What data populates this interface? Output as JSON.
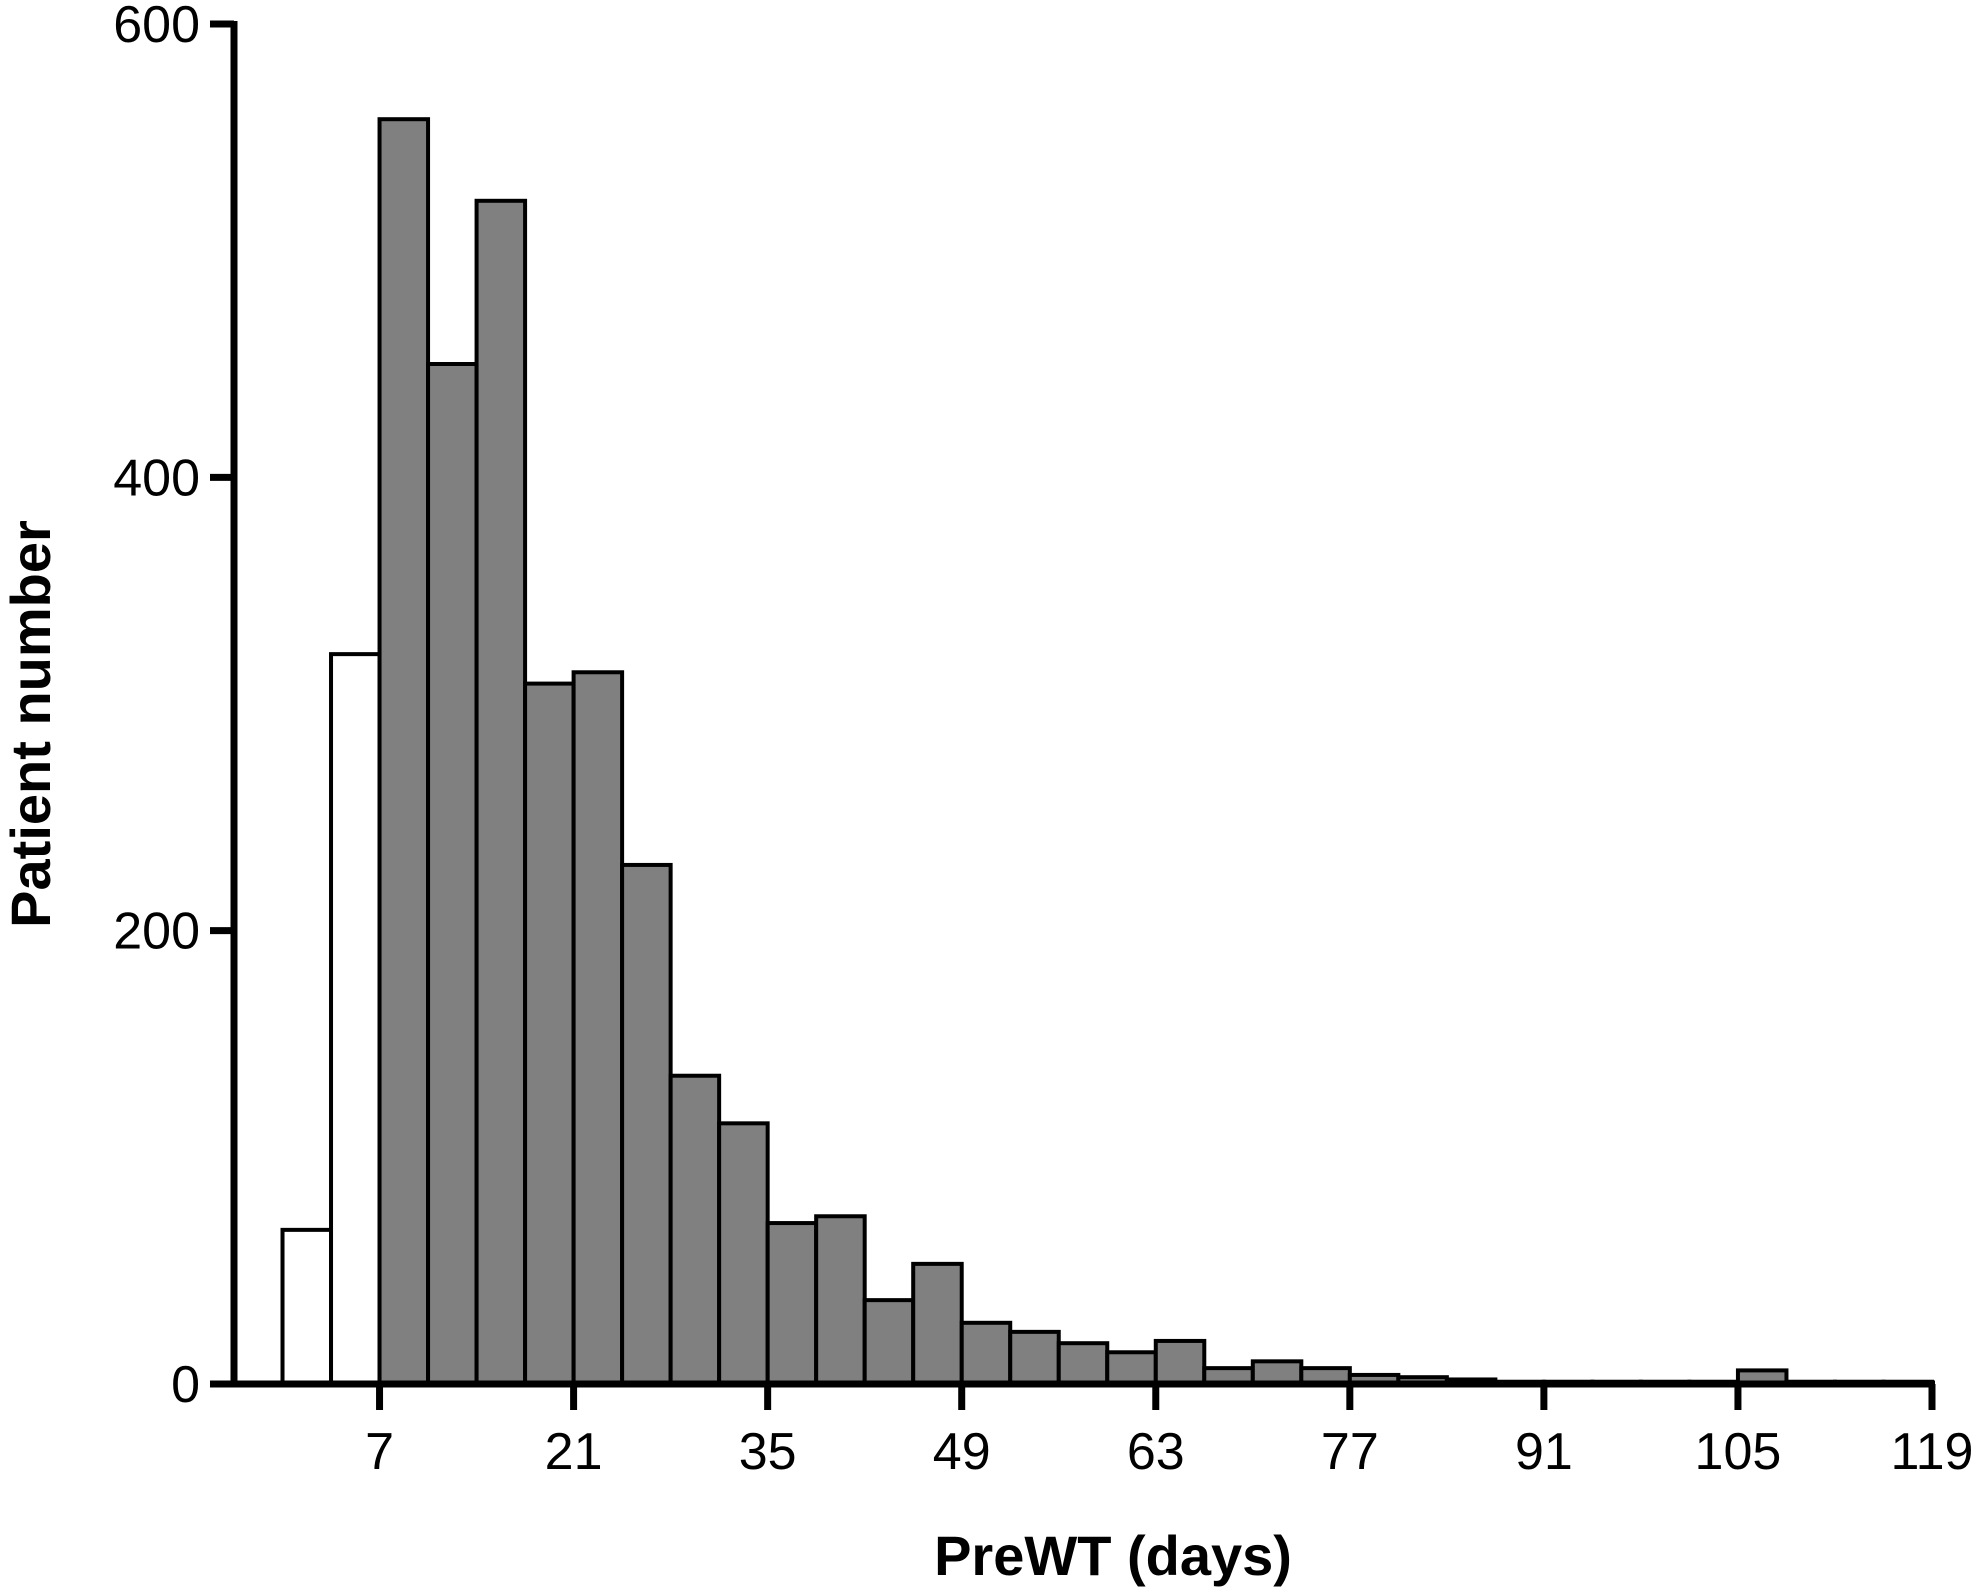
{
  "chart_data": {
    "type": "bar",
    "title": "",
    "xlabel": "PreWT (days)",
    "ylabel": "Patient number",
    "xlim": [
      -3.5,
      119
    ],
    "ylim": [
      0,
      600
    ],
    "x_ticks": [
      7,
      21,
      35,
      49,
      63,
      77,
      91,
      105,
      119
    ],
    "y_ticks": [
      0,
      200,
      400,
      600
    ],
    "bin_width": 3.5,
    "colors": {
      "highlight": "#ffffff",
      "main": "#808080"
    },
    "series": [
      {
        "values": [
          {
            "x": 0.0,
            "y": 68,
            "group": "highlight"
          },
          {
            "x": 3.5,
            "y": 322,
            "group": "highlight"
          },
          {
            "x": 7.0,
            "y": 558,
            "group": "main"
          },
          {
            "x": 10.5,
            "y": 450,
            "group": "main"
          },
          {
            "x": 14.0,
            "y": 522,
            "group": "main"
          },
          {
            "x": 17.5,
            "y": 309,
            "group": "main"
          },
          {
            "x": 21.0,
            "y": 314,
            "group": "main"
          },
          {
            "x": 24.5,
            "y": 229,
            "group": "main"
          },
          {
            "x": 28.0,
            "y": 136,
            "group": "main"
          },
          {
            "x": 31.5,
            "y": 115,
            "group": "main"
          },
          {
            "x": 35.0,
            "y": 71,
            "group": "main"
          },
          {
            "x": 38.5,
            "y": 74,
            "group": "main"
          },
          {
            "x": 42.0,
            "y": 37,
            "group": "main"
          },
          {
            "x": 45.5,
            "y": 53,
            "group": "main"
          },
          {
            "x": 49.0,
            "y": 27,
            "group": "main"
          },
          {
            "x": 52.5,
            "y": 23,
            "group": "main"
          },
          {
            "x": 56.0,
            "y": 18,
            "group": "main"
          },
          {
            "x": 59.5,
            "y": 14,
            "group": "main"
          },
          {
            "x": 63.0,
            "y": 19,
            "group": "main"
          },
          {
            "x": 66.5,
            "y": 7,
            "group": "main"
          },
          {
            "x": 70.0,
            "y": 10,
            "group": "main"
          },
          {
            "x": 73.5,
            "y": 7,
            "group": "main"
          },
          {
            "x": 77.0,
            "y": 4,
            "group": "main"
          },
          {
            "x": 80.5,
            "y": 3,
            "group": "main"
          },
          {
            "x": 84.0,
            "y": 2,
            "group": "main"
          },
          {
            "x": 87.5,
            "y": 1,
            "group": "main"
          },
          {
            "x": 91.0,
            "y": 1,
            "group": "main"
          },
          {
            "x": 94.5,
            "y": 1,
            "group": "main"
          },
          {
            "x": 98.0,
            "y": 1,
            "group": "main"
          },
          {
            "x": 101.5,
            "y": 1,
            "group": "main"
          },
          {
            "x": 105.0,
            "y": 6,
            "group": "main"
          },
          {
            "x": 108.5,
            "y": 1,
            "group": "main"
          },
          {
            "x": 112.0,
            "y": 1,
            "group": "main"
          },
          {
            "x": 115.5,
            "y": 1,
            "group": "main"
          }
        ]
      }
    ]
  }
}
